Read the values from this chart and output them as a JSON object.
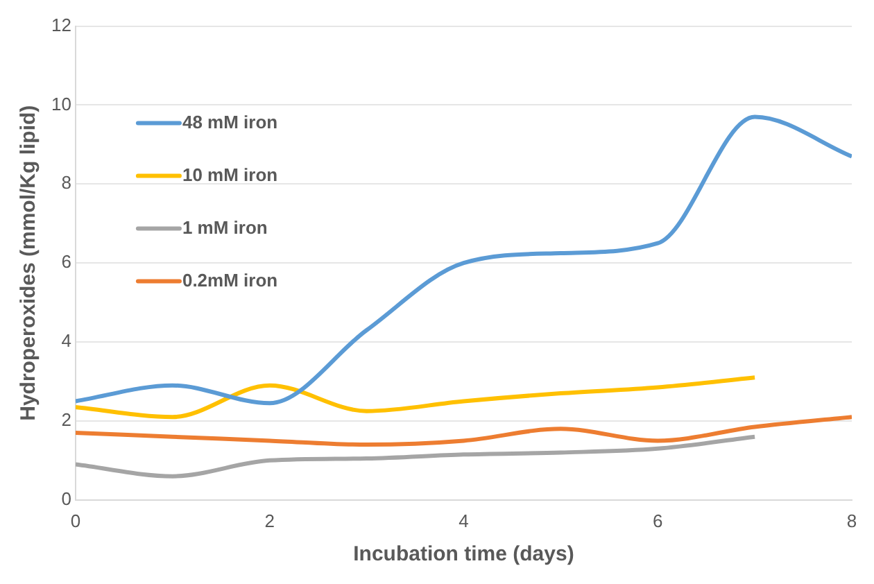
{
  "chart_data": {
    "type": "line",
    "xlabel": "Incubation time (days)",
    "ylabel": "Hydroperoxides (mmol/Kg lipid)",
    "xlim": [
      0,
      8
    ],
    "xticks": [
      0,
      2,
      4,
      6,
      8
    ],
    "ylim": [
      0,
      12
    ],
    "yticks": [
      0,
      2,
      4,
      6,
      8,
      10,
      12
    ],
    "grid": "y",
    "legend": "top left",
    "marker": "none",
    "line_style": "solid",
    "series": [
      {
        "name": "48 mM iron",
        "color": "#5b9bd5",
        "x": [
          0,
          1,
          2,
          3,
          4,
          5,
          6,
          7,
          8
        ],
        "values": [
          2.5,
          2.9,
          2.45,
          4.3,
          6.0,
          6.25,
          6.5,
          9.7,
          8.7
        ]
      },
      {
        "name": "10 mM iron",
        "color": "#ffc000",
        "x": [
          0,
          1,
          2,
          3,
          4,
          5,
          6,
          7
        ],
        "values": [
          2.35,
          2.1,
          2.9,
          2.25,
          2.5,
          2.7,
          2.85,
          3.1
        ]
      },
      {
        "name": "1 mM iron",
        "color": "#a5a5a5",
        "x": [
          0,
          1,
          2,
          3,
          4,
          5,
          6,
          7
        ],
        "values": [
          0.9,
          0.6,
          1.0,
          1.05,
          1.15,
          1.2,
          1.3,
          1.6
        ]
      },
      {
        "name": "0.2mM iron",
        "color": "#ed7d31",
        "x": [
          0,
          1,
          2,
          3,
          4,
          5,
          6,
          7,
          8
        ],
        "values": [
          1.7,
          1.6,
          1.5,
          1.4,
          1.5,
          1.8,
          1.5,
          1.85,
          2.1
        ]
      }
    ]
  }
}
